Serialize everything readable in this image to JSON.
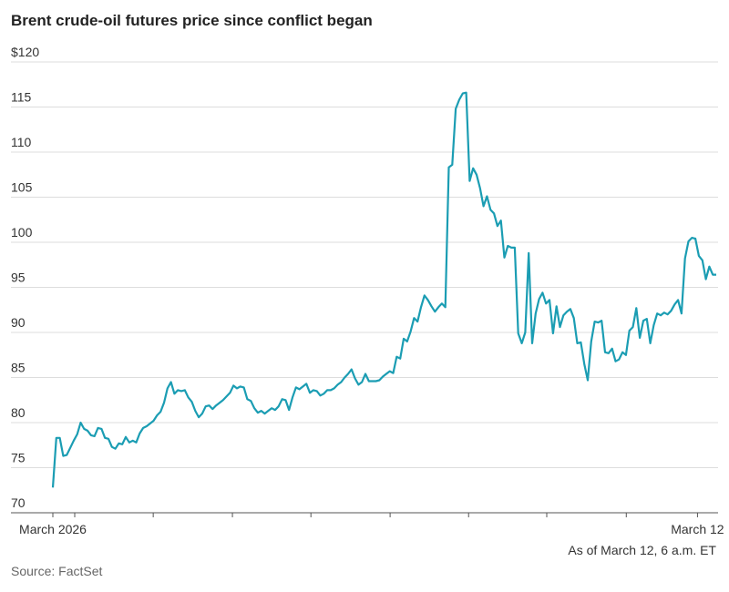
{
  "chart_data": {
    "type": "line",
    "title": "Brent crude-oil futures price since conflict began",
    "source": "Source: FactSet",
    "note": "As of March 12, 6 a.m. ET",
    "color": "#1b9db3",
    "grid": true,
    "ylim": [
      70,
      120
    ],
    "yticks": [
      {
        "value": 120,
        "label": "$120"
      },
      115,
      110,
      105,
      100,
      95,
      90,
      85,
      80,
      75,
      70
    ],
    "xlim": [
      0,
      191
    ],
    "xticks": [
      0,
      6.3,
      28.9,
      51.7,
      74.3,
      97.1,
      119.7,
      142.2,
      165.1,
      185.6
    ],
    "x_labels": [
      {
        "value": 0,
        "label": "March 2026"
      },
      {
        "value": 185.6,
        "label": "March 12"
      }
    ],
    "values": [
      72.8,
      78.3,
      78.3,
      76.3,
      76.4,
      77.2,
      78.0,
      78.7,
      80.0,
      79.3,
      79.1,
      78.6,
      78.5,
      79.4,
      79.3,
      78.3,
      78.2,
      77.3,
      77.1,
      77.7,
      77.6,
      78.4,
      77.8,
      78.0,
      77.8,
      78.8,
      79.4,
      79.6,
      79.9,
      80.2,
      80.8,
      81.2,
      82.2,
      83.8,
      84.5,
      83.2,
      83.6,
      83.5,
      83.6,
      82.8,
      82.3,
      81.3,
      80.6,
      81.0,
      81.8,
      81.9,
      81.5,
      81.9,
      82.2,
      82.5,
      82.9,
      83.3,
      84.1,
      83.8,
      84.0,
      83.9,
      82.6,
      82.4,
      81.6,
      81.1,
      81.3,
      81.0,
      81.3,
      81.6,
      81.4,
      81.8,
      82.6,
      82.5,
      81.4,
      82.8,
      83.9,
      83.7,
      84.0,
      84.3,
      83.3,
      83.6,
      83.5,
      83.0,
      83.2,
      83.6,
      83.6,
      83.8,
      84.2,
      84.5,
      85.0,
      85.4,
      85.9,
      84.9,
      84.2,
      84.5,
      85.4,
      84.6,
      84.6,
      84.6,
      84.7,
      85.1,
      85.4,
      85.7,
      85.5,
      87.3,
      87.1,
      89.3,
      89.0,
      90.1,
      91.6,
      91.2,
      92.8,
      94.1,
      93.6,
      92.9,
      92.3,
      92.8,
      93.2,
      92.8,
      108.3,
      108.6,
      114.8,
      115.8,
      116.5,
      116.6,
      106.8,
      108.2,
      107.5,
      106.0,
      104.0,
      105.1,
      103.6,
      103.2,
      101.8,
      102.4,
      98.3,
      99.6,
      99.4,
      99.4,
      89.9,
      88.8,
      90.0,
      98.8,
      88.8,
      92.1,
      93.7,
      94.4,
      93.2,
      93.6,
      89.9,
      92.9,
      90.6,
      91.9,
      92.3,
      92.6,
      91.6,
      88.8,
      88.9,
      86.5,
      84.7,
      89.0,
      91.2,
      91.1,
      91.3,
      87.8,
      87.7,
      88.2,
      86.8,
      87.0,
      87.8,
      87.5,
      90.2,
      90.6,
      92.7,
      89.4,
      91.3,
      91.5,
      88.8,
      90.8,
      92.1,
      91.9,
      92.2,
      92.0,
      92.4,
      93.1,
      93.6,
      92.1,
      98.2,
      100.1,
      100.5,
      100.4,
      98.5,
      98.0,
      95.9,
      97.3,
      96.4,
      96.4
    ]
  }
}
